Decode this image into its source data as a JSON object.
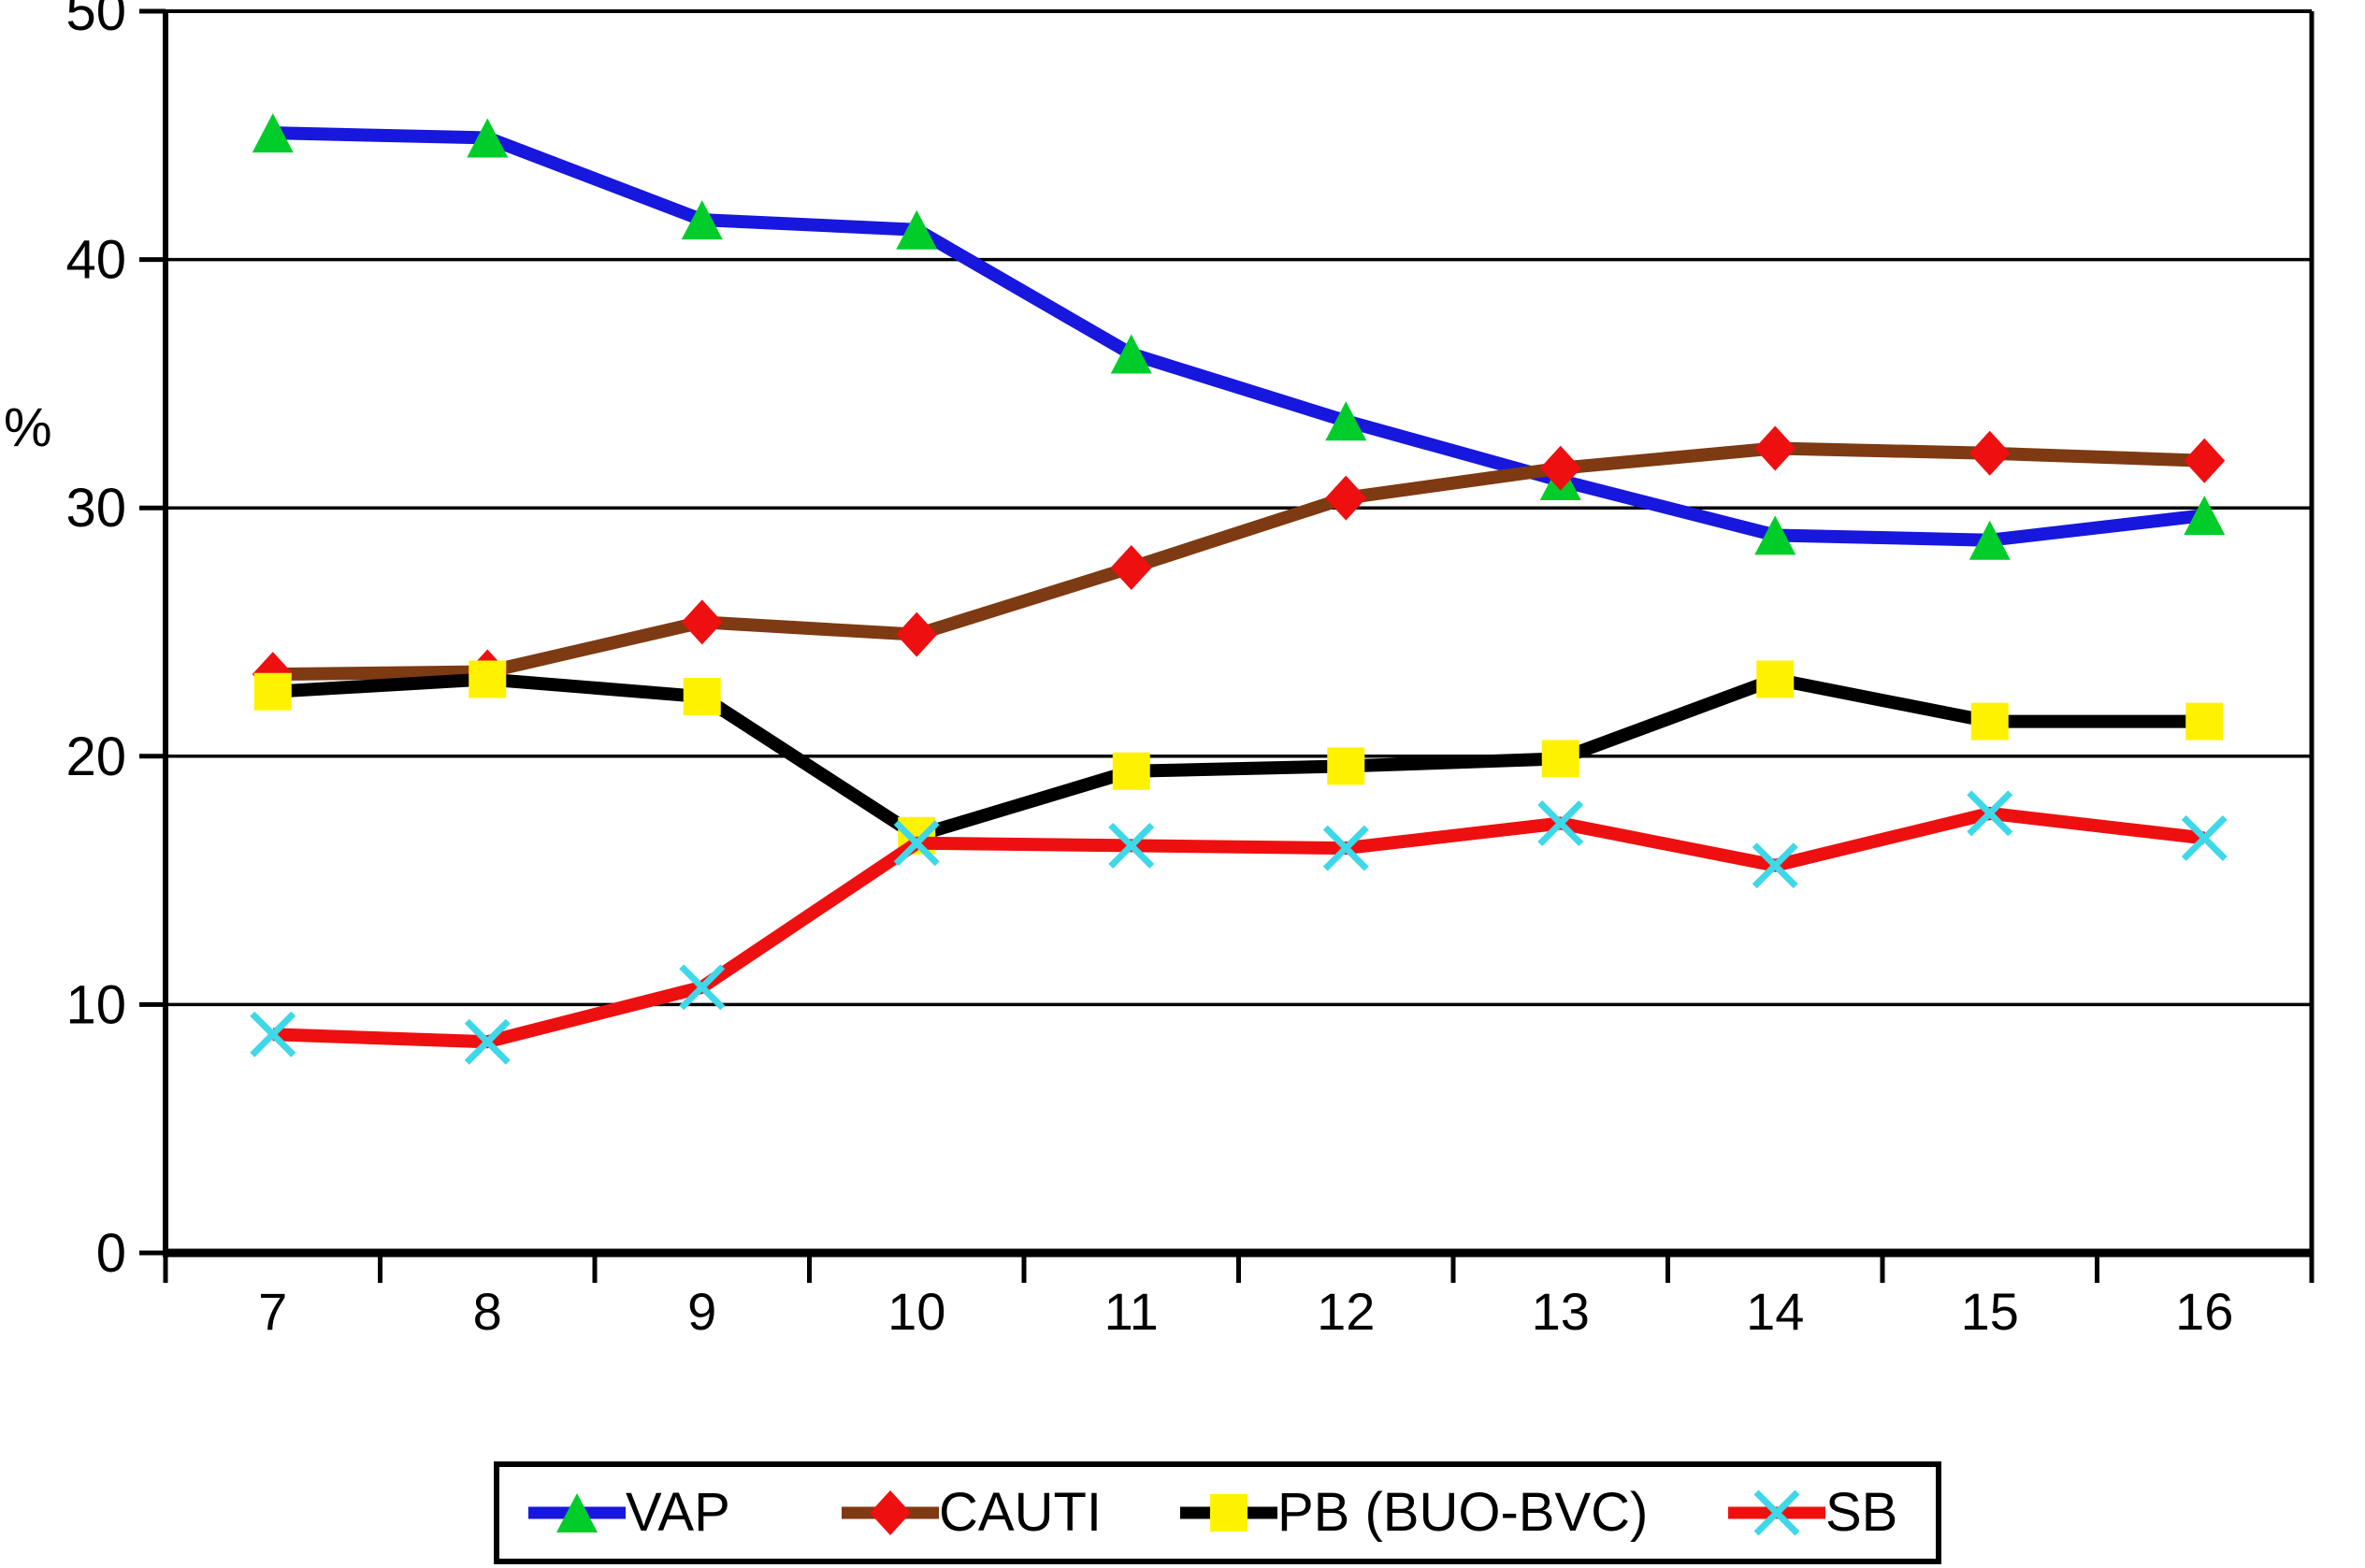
{
  "chart_data": {
    "type": "line",
    "title": "",
    "xlabel": "",
    "ylabel": "%",
    "ylim": [
      0,
      50
    ],
    "yticks": [
      0,
      10,
      20,
      30,
      40,
      50
    ],
    "grid": true,
    "legend_position": "bottom",
    "x": [
      7,
      8,
      9,
      10,
      11,
      12,
      13,
      14,
      15,
      16
    ],
    "series": [
      {
        "name": "VAP",
        "line_color": "#1717dd",
        "marker": "triangle",
        "marker_color": "#00cd2a",
        "values": [
          45.1,
          44.9,
          41.6,
          41.2,
          36.2,
          33.5,
          31.1,
          28.9,
          28.7,
          29.7
        ]
      },
      {
        "name": "CAUTI",
        "line_color": "#7e3a12",
        "marker": "diamond",
        "marker_color": "#ee1010",
        "values": [
          23.3,
          23.4,
          25.4,
          24.9,
          27.6,
          30.4,
          31.6,
          32.4,
          32.2,
          31.9
        ]
      },
      {
        "name": "PB (BUO-BVC)",
        "line_color": "#000000",
        "marker": "square",
        "marker_color": "#fff200",
        "values": [
          22.6,
          23.1,
          22.4,
          16.8,
          19.4,
          19.6,
          19.9,
          23.1,
          21.4,
          21.4
        ]
      },
      {
        "name": "SB",
        "line_color": "#ee1010",
        "marker": "x",
        "marker_color": "#3ed8e8",
        "values": [
          8.8,
          8.5,
          10.7,
          16.5,
          16.4,
          16.3,
          17.3,
          15.6,
          17.7,
          16.7
        ]
      }
    ]
  }
}
